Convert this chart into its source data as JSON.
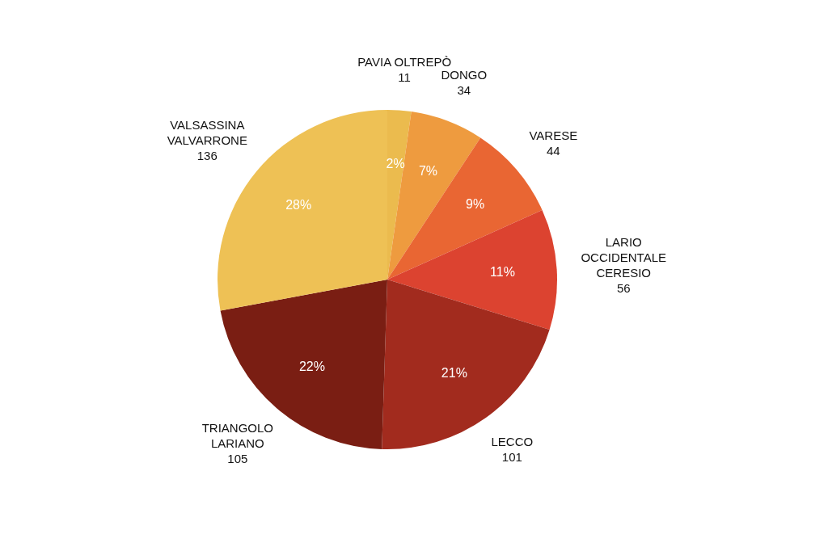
{
  "chart_data": {
    "type": "pie",
    "categories": [
      "PAVIA OLTREPÒ",
      "DONGO",
      "VARESE",
      "LARIO OCCIDENTALE CERESIO",
      "LECCO",
      "TRIANGOLO LARIANO",
      "VALSASSINA VALVARRONE"
    ],
    "values": [
      11,
      34,
      44,
      56,
      101,
      105,
      136
    ],
    "colors": [
      "#ebbb4e",
      "#ee9b3f",
      "#e96633",
      "#dc4330",
      "#a22b1e",
      "#7a1e13",
      "#eec155"
    ],
    "data_labels": true,
    "annotations": [
      {
        "text": "2%",
        "x": "PAVIA OLTREPÒ"
      },
      {
        "text": "7%",
        "x": "DONGO"
      },
      {
        "text": "9%",
        "x": "VARESE"
      },
      {
        "text": "11%",
        "x": "LARIO OCCIDENTALE CERESIO"
      },
      {
        "text": "21%",
        "x": "LECCO"
      },
      {
        "text": "22%",
        "x": "TRIANGOLO LARIANO"
      },
      {
        "text": "28%",
        "x": "VALSASSINA VALVARRONE"
      }
    ]
  }
}
